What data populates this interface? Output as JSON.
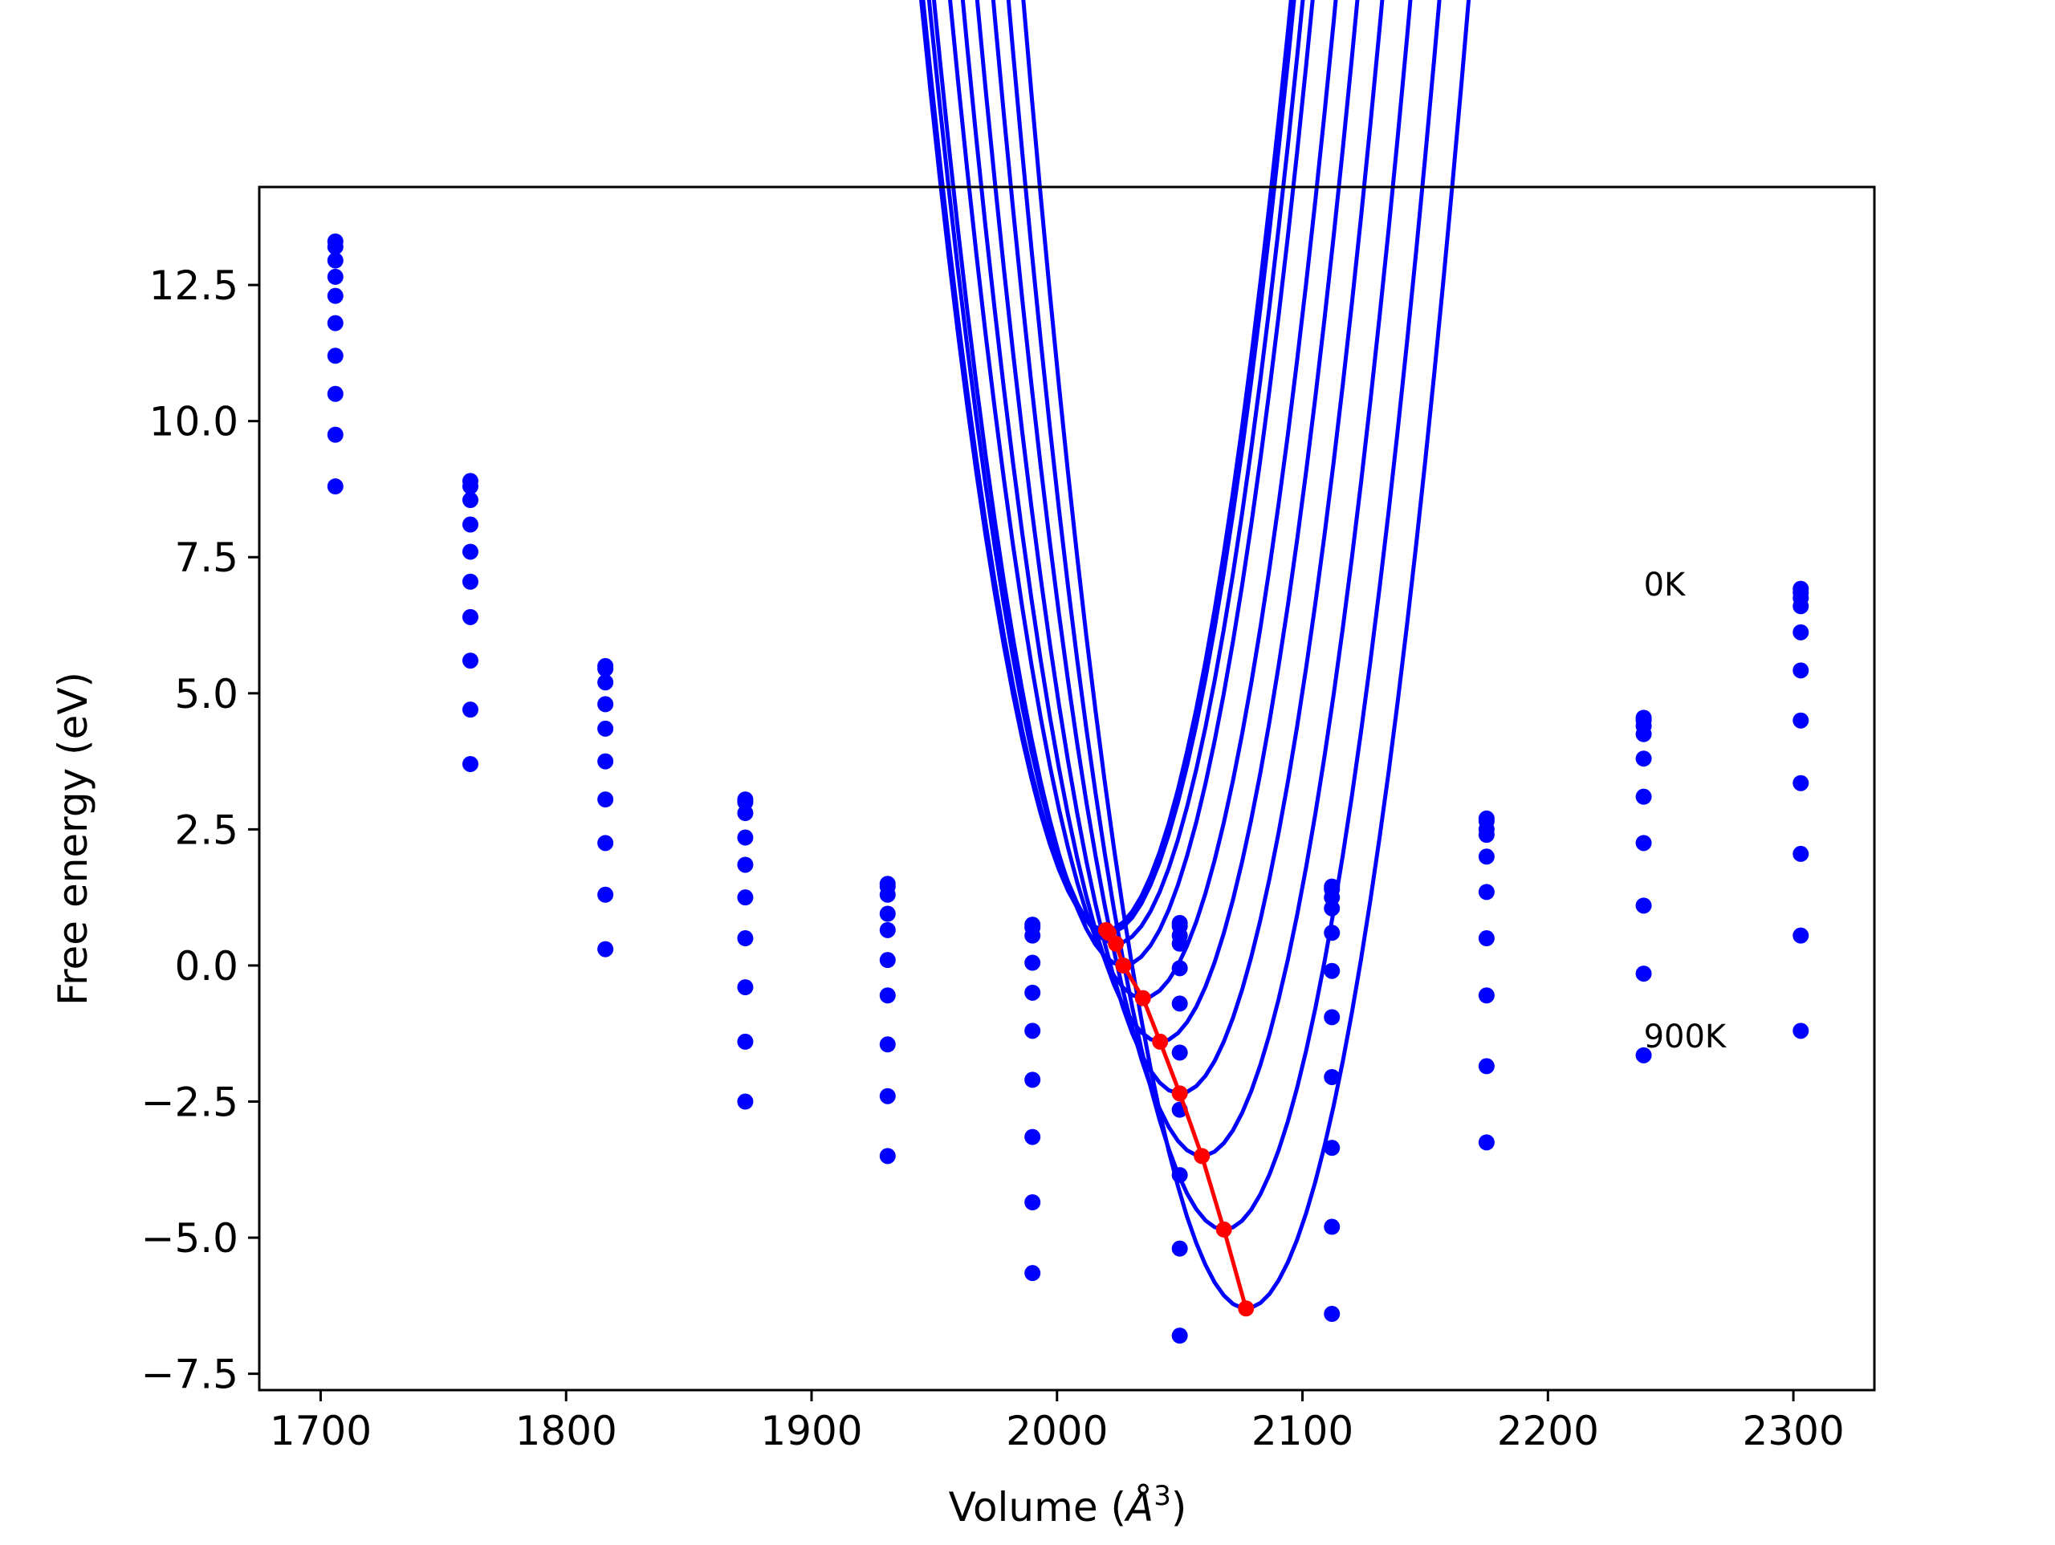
{
  "chart_data": {
    "type": "line",
    "title": "",
    "xlabel": "Volume (",
    "xlabel_unit": "Å",
    "xlabel_exp": "3",
    "xlabel_close": ")",
    "ylabel": "Free energy (eV)",
    "xlim": [
      1675,
      2333
    ],
    "ylim": [
      -7.8,
      14.3
    ],
    "xticks": [
      1700,
      1800,
      1900,
      2000,
      2100,
      2200,
      2300
    ],
    "xtick_labels": [
      "1700",
      "1800",
      "1900",
      "2000",
      "2100",
      "2200",
      "2300"
    ],
    "yticks": [
      -7.5,
      -5.0,
      -2.5,
      0.0,
      2.5,
      5.0,
      7.5,
      10.0,
      12.5
    ],
    "ytick_labels": [
      "−7.5",
      "−5.0",
      "−2.5",
      "0.0",
      "2.5",
      "5.0",
      "7.5",
      "10.0",
      "12.5"
    ],
    "grid": false,
    "annotations": [
      {
        "text": "0K",
        "x": 2239,
        "y": 7.0
      },
      {
        "text": "900K",
        "x": 2239,
        "y": -1.3
      }
    ],
    "colors": {
      "curves": "#0000ff",
      "points": "#0000ff",
      "minima": "#ff0000"
    },
    "volumes": [
      1706,
      1761,
      1816,
      1873,
      1931,
      1990,
      2050,
      2112,
      2175,
      2239,
      2303
    ],
    "series": [
      {
        "name": "0K",
        "points": [
          13.3,
          8.9,
          5.5,
          3.05,
          1.5,
          0.75,
          0.78,
          1.45,
          2.7,
          4.55,
          6.92
        ],
        "curve": [
          2020,
          0.65,
          0.00301
        ]
      },
      {
        "name": "",
        "points": [
          13.2,
          8.8,
          5.45,
          3.0,
          1.45,
          0.7,
          0.72,
          1.4,
          2.65,
          4.5,
          6.85
        ],
        "curve": [
          2021,
          0.6,
          0.003
        ]
      },
      {
        "name": "",
        "points": [
          12.95,
          8.55,
          5.2,
          2.8,
          1.3,
          0.55,
          0.55,
          1.25,
          2.5,
          4.4,
          6.75
        ],
        "curve": [
          2024,
          0.4,
          0.00299
        ]
      },
      {
        "name": "",
        "points": [
          12.65,
          8.1,
          4.8,
          2.35,
          0.95,
          0.05,
          0.4,
          1.05,
          2.4,
          4.25,
          6.6
        ],
        "curve": [
          2027,
          0.0,
          0.00298
        ]
      },
      {
        "name": "",
        "points": [
          12.3,
          7.6,
          4.35,
          1.85,
          0.65,
          -0.5,
          -0.05,
          0.6,
          2.0,
          3.8,
          6.12
        ],
        "curve": [
          2035,
          -0.6,
          0.00297
        ]
      },
      {
        "name": "",
        "points": [
          11.8,
          7.05,
          3.75,
          1.25,
          0.1,
          -1.2,
          -0.7,
          -0.1,
          1.35,
          3.1,
          5.42
        ],
        "curve": [
          2042,
          -1.4,
          0.00296
        ]
      },
      {
        "name": "",
        "points": [
          11.2,
          6.4,
          3.05,
          0.5,
          -0.55,
          -2.1,
          -1.6,
          -0.95,
          0.5,
          2.25,
          4.5
        ],
        "curve": [
          2050,
          -2.35,
          0.00295
        ]
      },
      {
        "name": "",
        "points": [
          10.5,
          5.6,
          2.25,
          -0.4,
          -1.45,
          -3.15,
          -2.65,
          -2.05,
          -0.55,
          1.1,
          3.35
        ],
        "curve": [
          2059,
          -3.5,
          0.00294
        ]
      },
      {
        "name": "",
        "points": [
          9.75,
          4.7,
          1.3,
          -1.4,
          -2.4,
          -4.35,
          -3.85,
          -3.35,
          -1.85,
          -0.15,
          2.05
        ],
        "curve": [
          2068,
          -4.85,
          0.00293
        ]
      },
      {
        "name": "900K",
        "points": [
          8.8,
          3.7,
          0.3,
          -2.5,
          -3.5,
          -5.65,
          -5.2,
          -4.8,
          -3.25,
          -1.65,
          0.55
        ],
        "curve": [
          2077,
          -6.3,
          0.00292
        ]
      }
    ],
    "minima": {
      "x": [
        2020,
        2021,
        2024,
        2027,
        2035,
        2042,
        2050,
        2059,
        2068,
        2077
      ],
      "y": [
        0.65,
        0.6,
        0.4,
        0.0,
        -0.6,
        -1.4,
        -2.35,
        -3.5,
        -4.85,
        -6.3
      ]
    },
    "extra_points": [
      {
        "x": 2112,
        "y": -6.4
      },
      {
        "x": 2050,
        "y": -6.8
      },
      {
        "x": 2303,
        "y": -1.2
      }
    ]
  }
}
